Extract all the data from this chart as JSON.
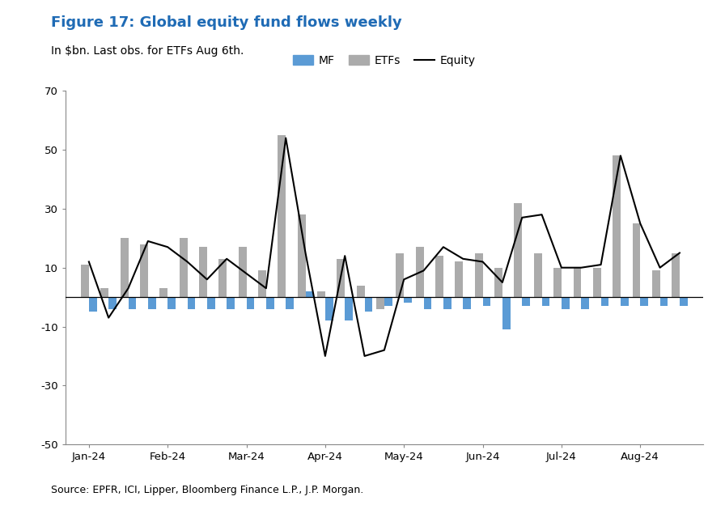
{
  "title": "Figure 17: Global equity fund flows weekly",
  "subtitle": "In $bn. Last obs. for ETFs Aug 6th.",
  "source": "Source: EPFR, ICI, Lipper, Bloomberg Finance L.P., J.P. Morgan.",
  "title_color": "#1F6BB5",
  "ylim": [
    -50,
    70
  ],
  "yticks": [
    -50,
    -30,
    -10,
    10,
    30,
    50,
    70
  ],
  "mf_color": "#5B9BD5",
  "etf_color": "#ABABAB",
  "equity_color": "#000000",
  "n_weeks": 31,
  "etf_values": [
    11,
    3,
    20,
    18,
    3,
    20,
    17,
    13,
    17,
    9,
    55,
    28,
    2,
    13,
    4,
    -4,
    15,
    17,
    14,
    12,
    15,
    10,
    32,
    15,
    10,
    10,
    10,
    48,
    25,
    9,
    15
  ],
  "mf_values": [
    -5,
    -4,
    -4,
    -4,
    -4,
    -4,
    -4,
    -4,
    -4,
    -4,
    -4,
    2,
    -8,
    -8,
    -5,
    -3,
    -2,
    -4,
    -4,
    -4,
    -3,
    -11,
    -3,
    -3,
    -4,
    -4,
    -3,
    -3,
    -3,
    -3,
    -3
  ],
  "equity_values": [
    12,
    -7,
    3,
    19,
    17,
    12,
    6,
    13,
    8,
    3,
    54,
    15,
    -20,
    14,
    -20,
    -18,
    6,
    9,
    17,
    13,
    12,
    5,
    27,
    28,
    10,
    10,
    11,
    48,
    25,
    10,
    15
  ],
  "month_tick_positions": [
    1,
    5,
    9,
    13,
    17,
    21,
    25,
    29
  ],
  "month_labels": [
    "Jan-24",
    "Feb-24",
    "Mar-24",
    "Apr-24",
    "May-24",
    "Jun-24",
    "Jul-24",
    "Aug-24"
  ]
}
